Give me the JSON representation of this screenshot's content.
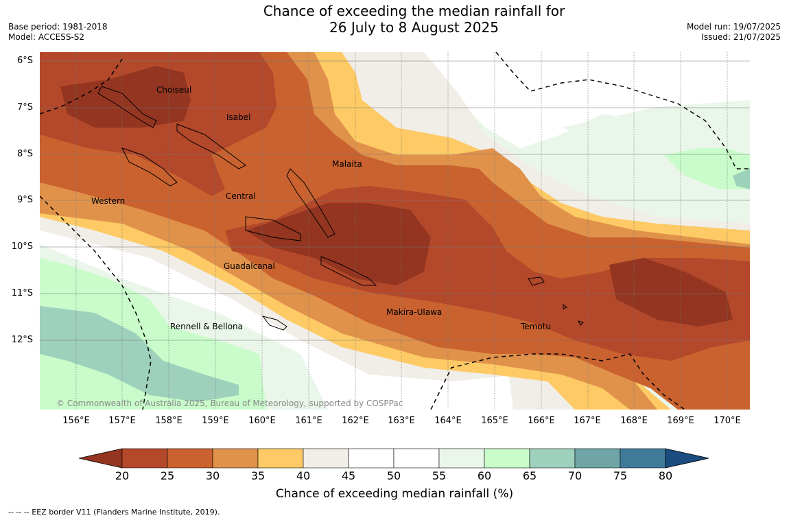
{
  "title": {
    "line1": "Chance of exceeding the median rainfall for",
    "line2": "26 July to 8 August 2025"
  },
  "meta_left": {
    "base_period": "Base period: 1981-2018",
    "model": "Model: ACCESS-S2"
  },
  "meta_right": {
    "model_run": "Model run: 19/07/2025",
    "issued": "Issued: 21/07/2025"
  },
  "map": {
    "lat_labels": [
      "6°S",
      "7°S",
      "8°S",
      "9°S",
      "10°S",
      "11°S",
      "12°S"
    ],
    "lon_labels": [
      "156°E",
      "157°E",
      "158°E",
      "159°E",
      "160°E",
      "161°E",
      "162°E",
      "163°E",
      "164°E",
      "165°E",
      "166°E",
      "167°E",
      "168°E",
      "169°E",
      "170°E"
    ],
    "places": [
      "Choiseul",
      "Isabel",
      "Malaita",
      "Central",
      "Western",
      "Guadalcanal",
      "Makira-Ulawa",
      "Rennell & Bellona",
      "Temotu"
    ],
    "copyright": "© Commonwealth of Australia 2025, Bureau of Meteorology, supported by COSPPac"
  },
  "colorbar": {
    "ticks": [
      "20",
      "25",
      "30",
      "35",
      "40",
      "45",
      "50",
      "55",
      "60",
      "65",
      "70",
      "75",
      "80"
    ],
    "colors": [
      "#933520",
      "#b3482a",
      "#c9622f",
      "#e0924a",
      "#fdca65",
      "#f1ede7",
      "#ffffff",
      "#ffffff",
      "#eaf6ea",
      "#c9fcca",
      "#9ed1bc",
      "#6fa5a6",
      "#3f7b99",
      "#1b4c7f"
    ],
    "label": "Chance of exceeding median rainfall (%)"
  },
  "footnote": "--  --  -- EEZ border V11 (Flanders Marine Institute, 2019)."
}
